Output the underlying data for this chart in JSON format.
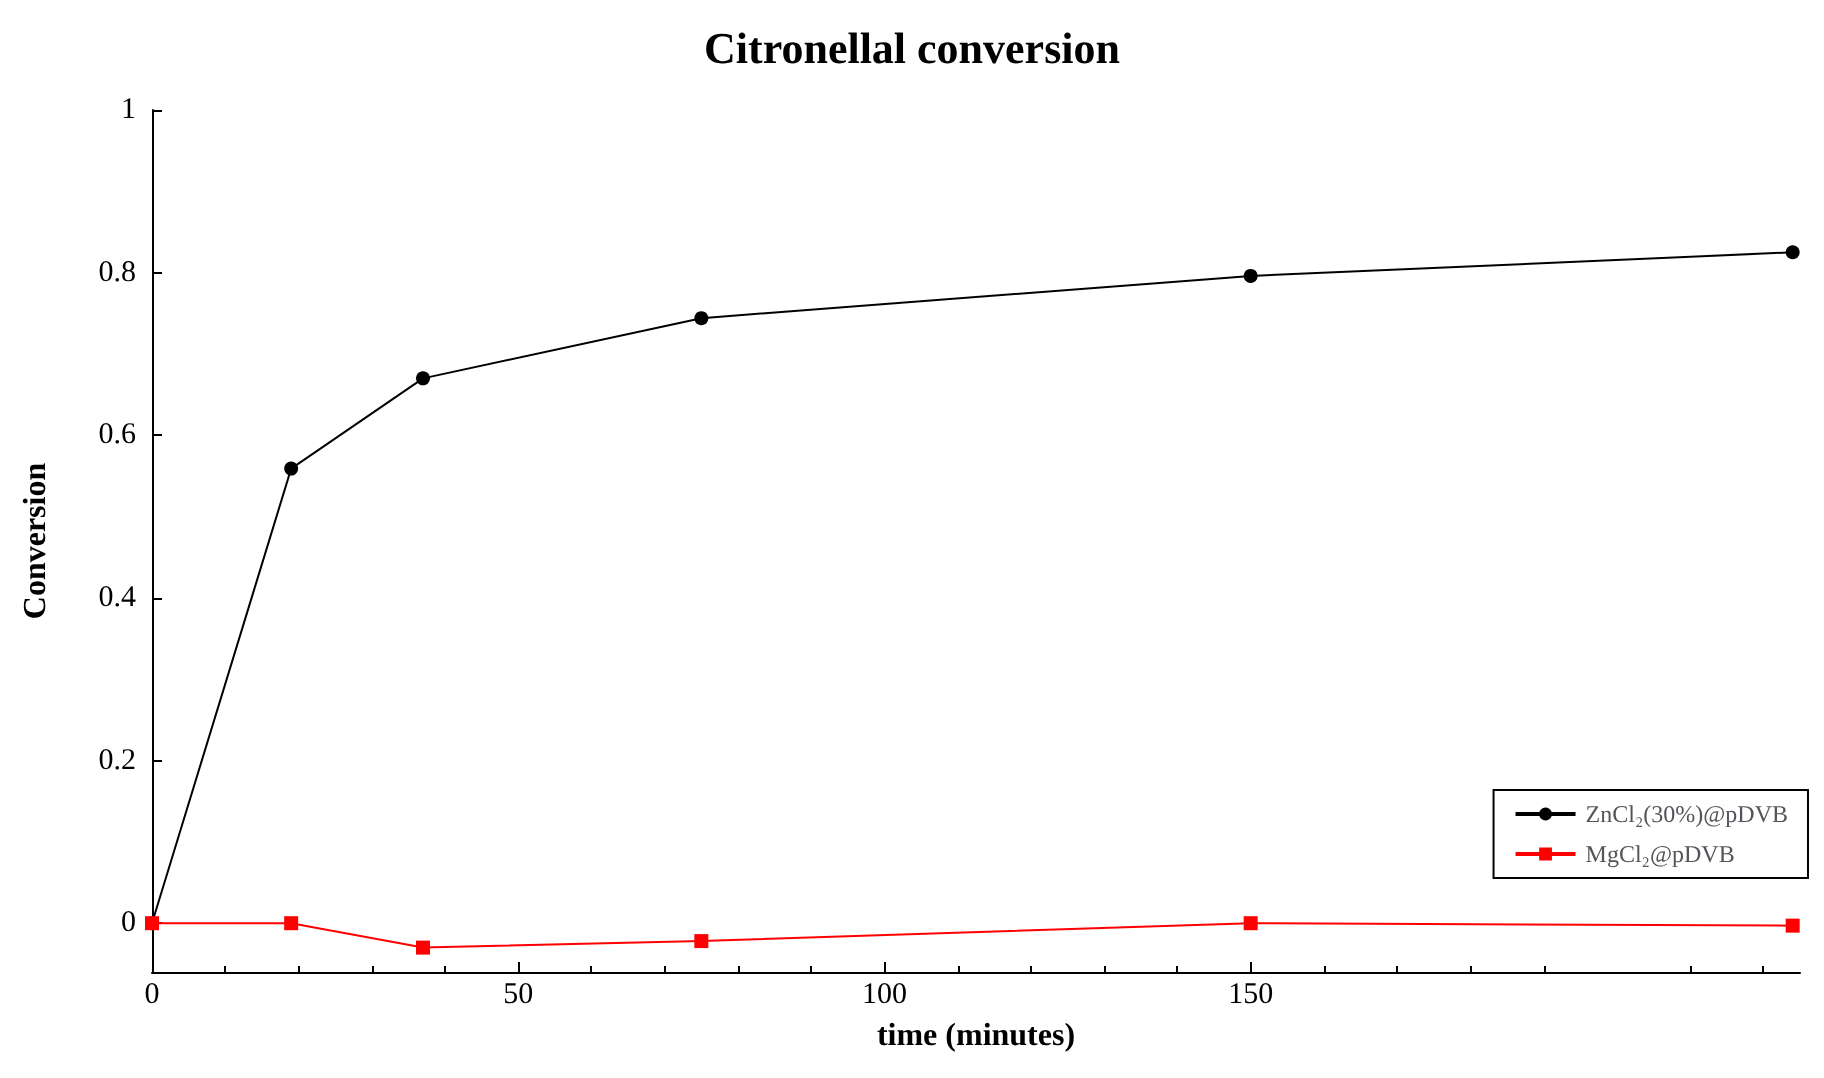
{
  "chart_data": {
    "type": "line",
    "title": "Citronellal conversion",
    "xlabel": "time (minutes)",
    "ylabel": "Conversion",
    "xlim": [
      0,
      225
    ],
    "xticks": [
      0,
      50,
      100,
      150
    ],
    "ylim": [
      -0.06,
      1
    ],
    "yticks": [
      0,
      0.2,
      0.4,
      0.6,
      0.8,
      1
    ],
    "grid": false,
    "legend": "bottom right",
    "line_style": "solid",
    "series": [
      {
        "name": "ZnCl₂(30%)@pDVB",
        "color": "#000000",
        "marker": "circle",
        "x": [
          0,
          19,
          37,
          75,
          150,
          224
        ],
        "values": [
          0,
          0.559,
          0.67,
          0.744,
          0.796,
          0.825
        ]
      },
      {
        "name": "MgCl₂@pDVB",
        "color": "#ff0000",
        "marker": "square",
        "x": [
          0,
          19,
          37,
          75,
          150,
          224
        ],
        "values": [
          0,
          0,
          -0.03,
          -0.022,
          0,
          -0.003
        ]
      }
    ]
  }
}
